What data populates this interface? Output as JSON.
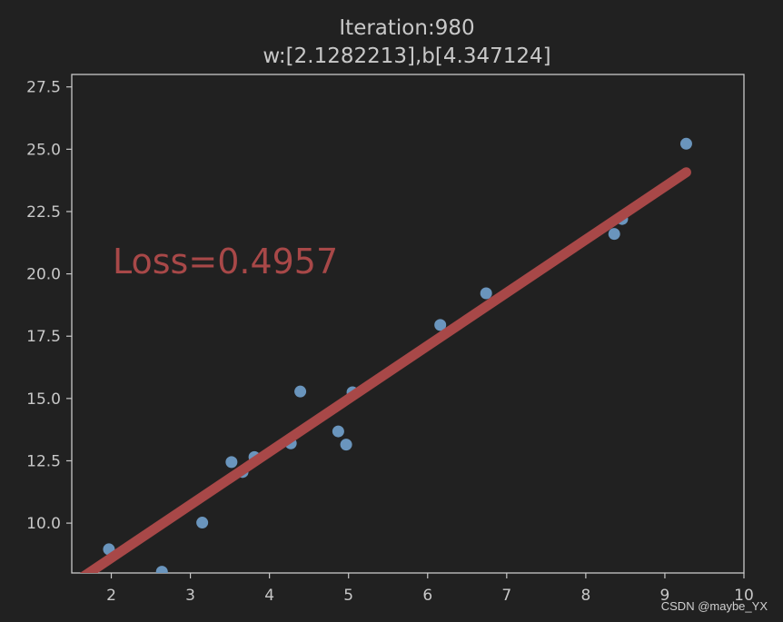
{
  "chart_data": {
    "type": "scatter",
    "title": "Iteration:980",
    "subtitle": "w:[2.1282213],b[4.347124]",
    "annotation": "Loss=0.4957",
    "xlabel": "",
    "ylabel": "",
    "xlim": [
      1.5,
      10
    ],
    "ylim": [
      8.0,
      28.0
    ],
    "xticks": [
      2,
      3,
      4,
      5,
      6,
      7,
      8,
      9,
      10
    ],
    "yticks": [
      10.0,
      12.5,
      15.0,
      17.5,
      20.0,
      22.5,
      25.0,
      27.5
    ],
    "xtick_labels": [
      "2",
      "3",
      "4",
      "5",
      "6",
      "7",
      "8",
      "9",
      "10"
    ],
    "ytick_labels": [
      "10.0",
      "12.5",
      "15.0",
      "17.5",
      "20.0",
      "22.5",
      "25.0",
      "27.5"
    ],
    "grid": false,
    "points": [
      {
        "x": 1.97,
        "y": 8.95
      },
      {
        "x": 2.64,
        "y": 8.05
      },
      {
        "x": 3.15,
        "y": 10.02
      },
      {
        "x": 3.52,
        "y": 12.45
      },
      {
        "x": 3.66,
        "y": 12.05
      },
      {
        "x": 3.81,
        "y": 12.65
      },
      {
        "x": 4.27,
        "y": 13.2
      },
      {
        "x": 4.39,
        "y": 15.28
      },
      {
        "x": 4.87,
        "y": 13.68
      },
      {
        "x": 4.97,
        "y": 13.15
      },
      {
        "x": 5.05,
        "y": 15.25
      },
      {
        "x": 6.16,
        "y": 17.95
      },
      {
        "x": 6.74,
        "y": 19.22
      },
      {
        "x": 8.36,
        "y": 21.6
      },
      {
        "x": 8.46,
        "y": 22.2
      },
      {
        "x": 9.27,
        "y": 25.22
      }
    ],
    "fit_line": {
      "w": 2.1282213,
      "b": 4.347124,
      "x_range": [
        1.63,
        9.27
      ]
    },
    "colors": {
      "points": "#6a95bd",
      "line": "#a84848",
      "axes": "#c8c8c8",
      "background": "#212121"
    }
  },
  "watermark": "CSDN @maybe_YX"
}
